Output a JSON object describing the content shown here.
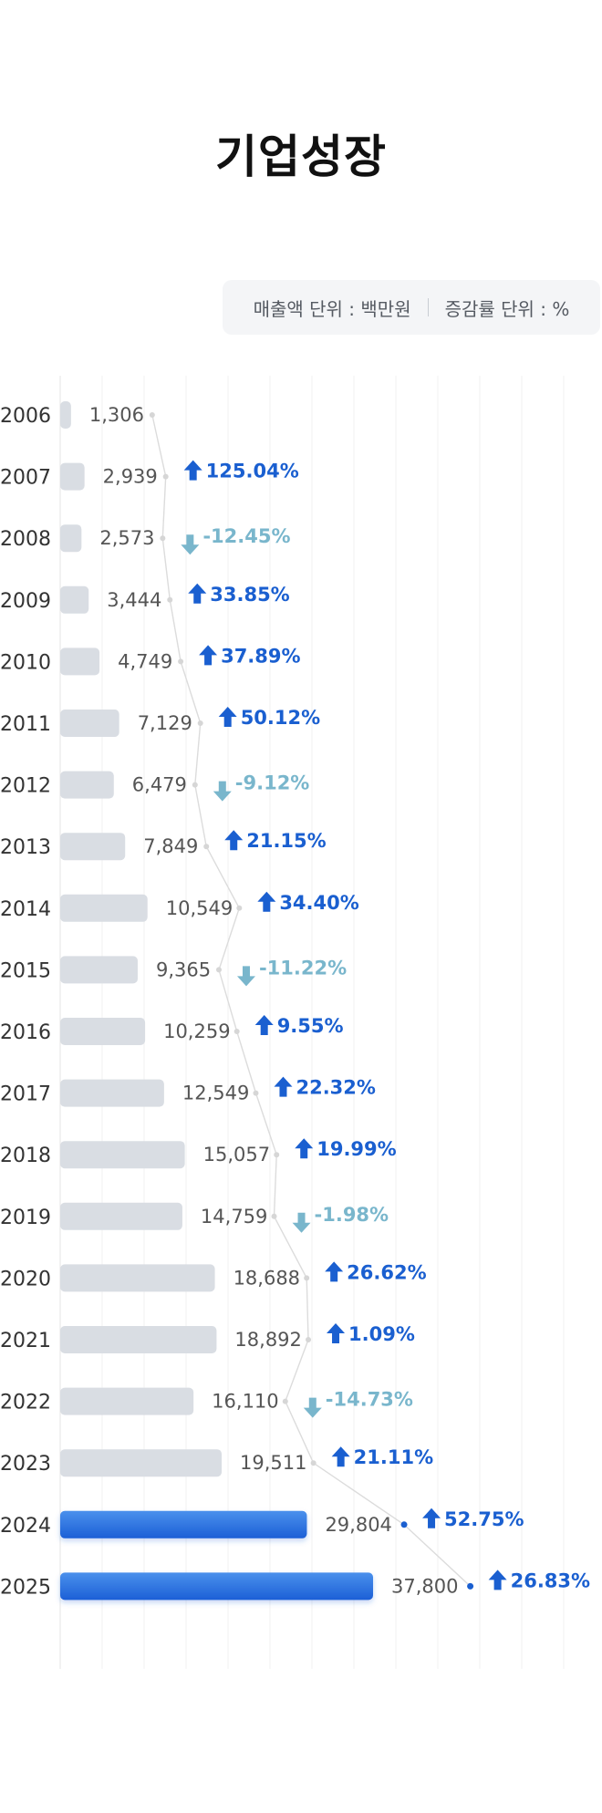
{
  "header": {
    "title": "기업성장"
  },
  "units": {
    "revenue_unit": "매출액 단위 : 백만원",
    "growth_unit": "증감률 단위 : %"
  },
  "colors": {
    "bar_past": "#d9dde3",
    "bar_highlight_top": "#4a90ec",
    "bar_highlight_bottom": "#1c5fd6",
    "growth_up": "#1a5fd0",
    "growth_down": "#79b6cc",
    "line": "#dcdcdc",
    "dot": "#d6d6d6",
    "dot_highlight": "#1a5fd0"
  },
  "chart_data": {
    "type": "bar",
    "orientation": "horizontal",
    "categories": [
      "2006",
      "2007",
      "2008",
      "2009",
      "2010",
      "2011",
      "2012",
      "2013",
      "2014",
      "2015",
      "2016",
      "2017",
      "2018",
      "2019",
      "2020",
      "2021",
      "2022",
      "2023",
      "2024",
      "2025"
    ],
    "series": [
      {
        "values": [
          1306,
          2939,
          2573,
          3444,
          4749,
          7129,
          6479,
          7849,
          10549,
          9365,
          10259,
          12549,
          15057,
          14759,
          18688,
          18892,
          16110,
          19511,
          29804,
          37800
        ]
      }
    ],
    "value_labels": [
      "1,306",
      "2,939",
      "2,573",
      "3,444",
      "4,749",
      "7,129",
      "6,479",
      "7,849",
      "10,549",
      "9,365",
      "10,259",
      "12,549",
      "15,057",
      "14,759",
      "18,688",
      "18,892",
      "16,110",
      "19,511",
      "29,804",
      "37,800"
    ],
    "growth": [
      null,
      125.04,
      -12.45,
      33.85,
      37.89,
      50.12,
      -9.12,
      21.15,
      34.4,
      -11.22,
      9.55,
      22.32,
      19.99,
      -1.98,
      26.62,
      1.09,
      -14.73,
      21.11,
      52.75,
      26.83
    ],
    "growth_labels": [
      "",
      "125.04%",
      "-12.45%",
      "33.85%",
      "37.89%",
      "50.12%",
      "-9.12%",
      "21.15%",
      "34.40%",
      "-11.22%",
      "9.55%",
      "22.32%",
      "19.99%",
      "-1.98%",
      "26.62%",
      "1.09%",
      "-14.73%",
      "21.11%",
      "52.75%",
      "26.83%"
    ],
    "highlight_categories": [
      "2024",
      "2025"
    ],
    "xlim": [
      0,
      40000
    ],
    "grid": true,
    "legend": "none"
  }
}
